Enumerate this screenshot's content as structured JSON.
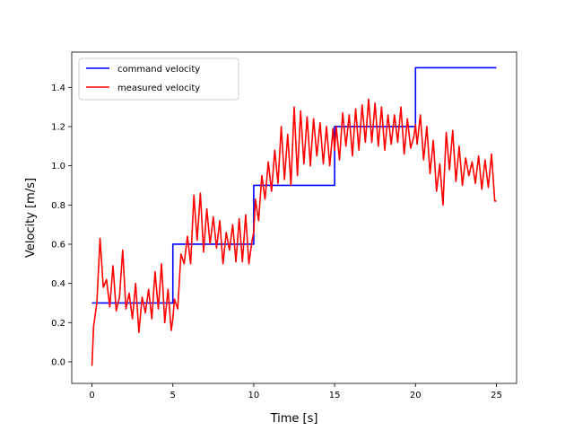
{
  "chart_data": {
    "type": "line",
    "xlabel": "Time [s]",
    "ylabel": "Velocity [m/s]",
    "xlim": [
      -1.25,
      26.25
    ],
    "ylim": [
      -0.11,
      1.58
    ],
    "xticks": [
      0,
      5,
      10,
      15,
      20,
      25
    ],
    "yticks": [
      0.0,
      0.2,
      0.4,
      0.6,
      0.8,
      1.0,
      1.2,
      1.4
    ],
    "ytick_labels": [
      "0.0",
      "0.2",
      "0.4",
      "0.6",
      "0.8",
      "1.0",
      "1.2",
      "1.4"
    ],
    "grid": false,
    "legend_position": "upper-left",
    "series": [
      {
        "name": "command velocity",
        "color": "#0000ff",
        "x": [
          0,
          5,
          5,
          10,
          10,
          15,
          15,
          20,
          20,
          25
        ],
        "y": [
          0.3,
          0.3,
          0.6,
          0.6,
          0.9,
          0.9,
          1.2,
          1.2,
          1.5,
          1.5
        ]
      },
      {
        "name": "measured velocity",
        "color": "#ff0000",
        "x": [
          0,
          0.1,
          0.3,
          0.5,
          0.7,
          0.9,
          1.1,
          1.3,
          1.5,
          1.7,
          1.9,
          2.1,
          2.3,
          2.5,
          2.7,
          2.9,
          3.1,
          3.3,
          3.5,
          3.7,
          3.9,
          4.1,
          4.3,
          4.5,
          4.7,
          4.9,
          5.0,
          5.1,
          5.3,
          5.5,
          5.7,
          5.9,
          6.1,
          6.3,
          6.5,
          6.7,
          6.9,
          7.1,
          7.3,
          7.5,
          7.7,
          7.9,
          8.1,
          8.3,
          8.5,
          8.7,
          8.9,
          9.1,
          9.3,
          9.5,
          9.7,
          9.9,
          10.0,
          10.1,
          10.3,
          10.5,
          10.7,
          10.9,
          11.1,
          11.3,
          11.5,
          11.7,
          11.9,
          12.1,
          12.3,
          12.5,
          12.7,
          12.9,
          13.1,
          13.3,
          13.5,
          13.7,
          13.9,
          14.1,
          14.3,
          14.5,
          14.7,
          14.9,
          15.0,
          15.1,
          15.3,
          15.5,
          15.7,
          15.9,
          16.1,
          16.3,
          16.5,
          16.7,
          16.9,
          17.1,
          17.3,
          17.5,
          17.7,
          17.9,
          18.1,
          18.3,
          18.5,
          18.7,
          18.9,
          19.1,
          19.3,
          19.5,
          19.7,
          19.9,
          20.0,
          20.1,
          20.3,
          20.5,
          20.7,
          20.9,
          21.1,
          21.3,
          21.5,
          21.7,
          21.9,
          22.1,
          22.3,
          22.5,
          22.7,
          22.9,
          23.1,
          23.3,
          23.5,
          23.7,
          23.9,
          24.1,
          24.3,
          24.5,
          24.7,
          24.9,
          25.0
        ],
        "y": [
          -0.02,
          0.18,
          0.3,
          0.63,
          0.38,
          0.42,
          0.28,
          0.49,
          0.26,
          0.33,
          0.57,
          0.27,
          0.35,
          0.22,
          0.4,
          0.15,
          0.33,
          0.25,
          0.37,
          0.22,
          0.46,
          0.27,
          0.5,
          0.2,
          0.37,
          0.16,
          0.22,
          0.32,
          0.27,
          0.55,
          0.5,
          0.64,
          0.5,
          0.85,
          0.62,
          0.86,
          0.56,
          0.78,
          0.6,
          0.74,
          0.58,
          0.72,
          0.5,
          0.66,
          0.57,
          0.7,
          0.51,
          0.73,
          0.51,
          0.75,
          0.5,
          0.62,
          0.66,
          0.83,
          0.72,
          0.95,
          0.83,
          1.02,
          0.87,
          1.08,
          0.91,
          1.2,
          0.93,
          1.16,
          0.9,
          1.3,
          0.95,
          1.28,
          1.01,
          1.25,
          1.0,
          1.24,
          1.05,
          1.22,
          1.01,
          1.2,
          1.0,
          1.19,
          1.08,
          1.2,
          1.03,
          1.27,
          1.1,
          1.26,
          1.05,
          1.29,
          1.08,
          1.31,
          1.12,
          1.34,
          1.12,
          1.32,
          1.1,
          1.3,
          1.08,
          1.26,
          1.11,
          1.26,
          1.12,
          1.3,
          1.06,
          1.24,
          1.09,
          1.15,
          1.21,
          1.11,
          1.26,
          1.03,
          1.2,
          0.96,
          1.13,
          0.87,
          1.01,
          0.8,
          1.17,
          0.98,
          1.18,
          0.92,
          1.1,
          0.9,
          1.04,
          0.95,
          1.02,
          0.91,
          1.05,
          0.88,
          1.03,
          0.89,
          1.06,
          0.82,
          0.82
        ]
      }
    ]
  }
}
